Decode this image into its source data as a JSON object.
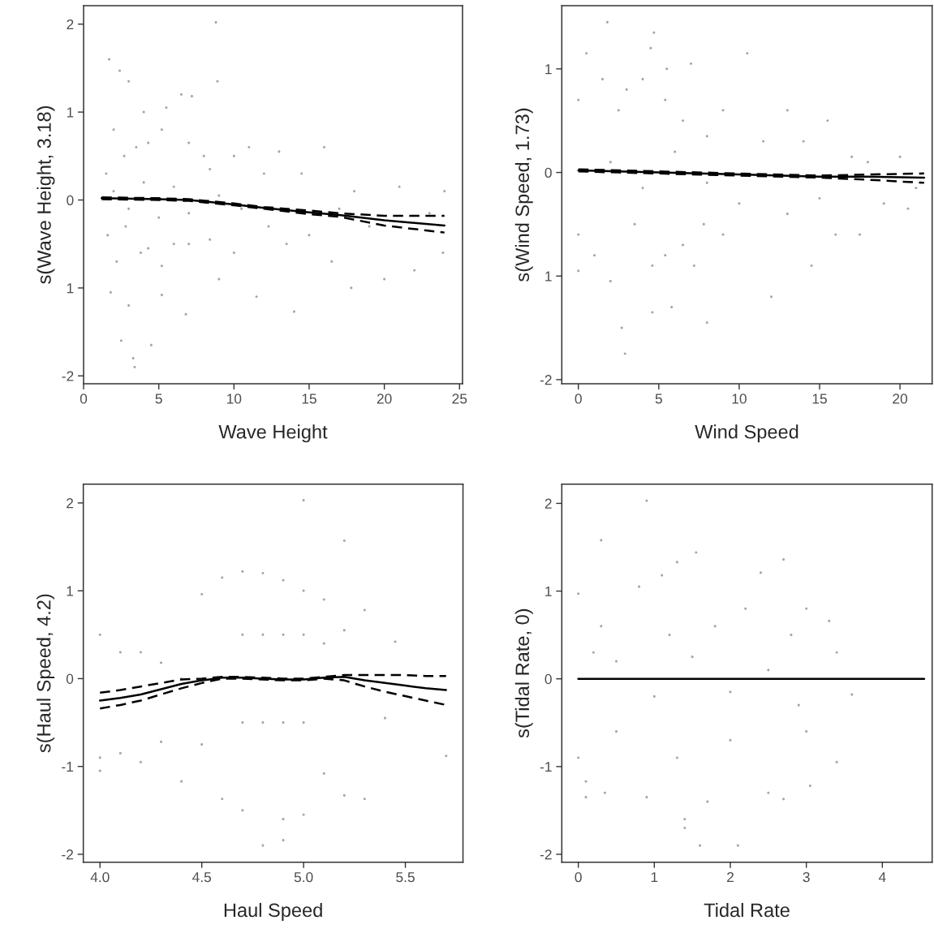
{
  "chart_data": [
    {
      "type": "scatter",
      "xlabel": "Wave Height",
      "ylabel": "s(Wave Height, 3.18)",
      "xlim": [
        0,
        25.2
      ],
      "ylim": [
        -2.09,
        2.21
      ],
      "xticks": [
        0,
        5,
        10,
        15,
        20,
        25
      ],
      "yticks": [
        -2,
        {
          "value": -1,
          "label": "1"
        },
        0,
        1,
        2
      ],
      "grid": false,
      "series": [
        {
          "marker": "circle",
          "color": "#a6a6a6",
          "x": [
            1.5,
            1.6,
            1.7,
            1.8,
            2,
            2.2,
            2.4,
            2.5,
            2.7,
            2.8,
            3,
            3,
            3.3,
            3.4,
            3.5,
            3.8,
            4,
            4.3,
            4.3,
            4.5,
            5.2,
            5.2,
            5.2,
            5.5,
            6,
            6.5,
            6.8,
            7,
            7,
            7.2,
            8,
            8.4,
            8.4,
            8.8,
            8.9,
            9,
            10,
            10,
            11,
            11.5,
            12,
            12.3,
            13,
            13.5,
            14,
            14.5,
            15,
            16,
            16.5,
            17,
            17.8,
            18,
            19,
            20,
            21,
            22,
            23,
            23.9,
            24,
            2,
            3,
            4,
            5,
            6,
            7,
            9,
            10.5
          ],
          "values": [
            0.3,
            -0.4,
            1.6,
            -1.05,
            0.8,
            -0.7,
            1.47,
            -1.6,
            0.5,
            -0.3,
            1.35,
            -1.2,
            -1.8,
            -1.9,
            0.6,
            -0.6,
            1.0,
            0.65,
            -0.55,
            -1.65,
            0.8,
            -0.75,
            -1.08,
            1.05,
            -0.5,
            1.2,
            -1.3,
            0.65,
            -0.5,
            1.18,
            0.5,
            0.35,
            -0.45,
            2.02,
            1.35,
            -0.9,
            0.5,
            -0.6,
            0.6,
            -1.1,
            0.3,
            -0.3,
            0.55,
            -0.5,
            -1.27,
            0.3,
            -0.4,
            0.6,
            -0.7,
            -0.1,
            -1.0,
            0.1,
            -0.3,
            -0.9,
            0.15,
            -0.8,
            -0.15,
            -0.6,
            0.1,
            0.1,
            -0.1,
            0.2,
            -0.2,
            0.15,
            -0.15,
            0.05,
            -0.1
          ]
        },
        {
          "type": "line",
          "line_style": "solid",
          "color": "#000000",
          "x": [
            1.2,
            5,
            7,
            10,
            12,
            15,
            17,
            20,
            24
          ],
          "values": [
            0.02,
            0.01,
            0.0,
            -0.05,
            -0.09,
            -0.14,
            -0.17,
            -0.23,
            -0.29
          ]
        },
        {
          "type": "line",
          "line_style": "dashed",
          "color": "#000000",
          "x": [
            1.2,
            5,
            7,
            10,
            12,
            15,
            17,
            20,
            24
          ],
          "values": [
            0.01,
            0.0,
            -0.01,
            -0.06,
            -0.1,
            -0.16,
            -0.19,
            -0.29,
            -0.37
          ]
        },
        {
          "type": "line",
          "line_style": "dashed",
          "color": "#000000",
          "x": [
            1.2,
            5,
            7,
            10,
            12,
            15,
            17,
            20,
            24
          ],
          "values": [
            0.03,
            0.02,
            0.01,
            -0.04,
            -0.08,
            -0.12,
            -0.15,
            -0.18,
            -0.18
          ]
        }
      ]
    },
    {
      "type": "scatter",
      "xlabel": "Wind Speed",
      "ylabel": "s(Wind Speed, 1.73)",
      "xlim": [
        -1.03,
        22.0
      ],
      "ylim": [
        -2.04,
        1.61
      ],
      "xticks": [
        0,
        5,
        10,
        15,
        20
      ],
      "yticks": [
        -2,
        {
          "value": -1,
          "label": "1"
        },
        0,
        1
      ],
      "grid": false,
      "series": [
        {
          "marker": "circle",
          "color": "#a6a6a6",
          "x": [
            0,
            0,
            0,
            0.5,
            1,
            1.5,
            1.8,
            2,
            2.5,
            2.7,
            2.9,
            3,
            3.5,
            4,
            4.5,
            4.6,
            4.6,
            4.7,
            5.4,
            5.4,
            5.5,
            5.8,
            6.5,
            6.5,
            7,
            7.2,
            7.8,
            8,
            8,
            9,
            9,
            10.5,
            10,
            11.5,
            12,
            13,
            13,
            14,
            14.5,
            15,
            15.5,
            16,
            17,
            17.5,
            18,
            19,
            20,
            20.5,
            21,
            2,
            4,
            6,
            8
          ],
          "values": [
            0.7,
            -0.6,
            -0.95,
            1.15,
            -0.8,
            0.9,
            1.45,
            -1.05,
            0.6,
            -1.5,
            -1.75,
            0.8,
            -0.5,
            0.9,
            1.2,
            -0.9,
            -1.35,
            1.35,
            0.7,
            -0.8,
            1.0,
            -1.3,
            0.5,
            -0.7,
            1.05,
            -0.9,
            -0.5,
            0.35,
            -1.45,
            0.6,
            -0.6,
            1.15,
            -0.3,
            0.3,
            -1.2,
            0.6,
            -0.4,
            0.3,
            -0.9,
            -0.25,
            0.5,
            -0.6,
            0.15,
            -0.6,
            0.1,
            -0.3,
            0.15,
            -0.35,
            -0.15,
            0.1,
            -0.15,
            0.2,
            -0.1
          ]
        },
        {
          "type": "line",
          "line_style": "solid",
          "color": "#000000",
          "x": [
            0,
            5,
            10,
            15,
            18,
            21.5
          ],
          "values": [
            0.02,
            0.0,
            -0.02,
            -0.04,
            -0.04,
            -0.05
          ]
        },
        {
          "type": "line",
          "line_style": "dashed",
          "color": "#000000",
          "x": [
            0,
            5,
            10,
            15,
            18,
            21.5
          ],
          "values": [
            0.01,
            -0.01,
            -0.03,
            -0.05,
            -0.07,
            -0.1
          ]
        },
        {
          "type": "line",
          "line_style": "dashed",
          "color": "#000000",
          "x": [
            0,
            5,
            10,
            15,
            18,
            21.5
          ],
          "values": [
            0.03,
            0.01,
            -0.01,
            -0.03,
            -0.02,
            -0.01
          ]
        }
      ]
    },
    {
      "type": "scatter",
      "xlabel": "Haul Speed",
      "ylabel": "s(Haul Speed, 4.2)",
      "xlim": [
        3.918,
        5.783
      ],
      "ylim": [
        -2.09,
        2.215
      ],
      "xticks": [
        {
          "value": 4,
          "label": "4.0"
        },
        4.5,
        {
          "value": 5,
          "label": "5.0"
        },
        5.5
      ],
      "yticks": [
        -2,
        -1,
        0,
        1,
        2
      ],
      "grid": false,
      "series": [
        {
          "marker": "circle",
          "color": "#a6a6a6",
          "x": [
            4.0,
            4.0,
            4.0,
            4.1,
            4.1,
            4.2,
            4.2,
            4.3,
            4.3,
            4.4,
            4.4,
            4.5,
            4.5,
            4.6,
            4.6,
            4.7,
            4.7,
            4.7,
            4.7,
            4.8,
            4.8,
            4.8,
            4.8,
            4.9,
            4.9,
            4.9,
            4.9,
            4.9,
            5.0,
            5.0,
            5.0,
            5.0,
            5.0,
            5.1,
            5.1,
            5.1,
            5.2,
            5.2,
            5.2,
            5.3,
            5.3,
            5.4,
            5.45,
            5.7
          ],
          "values": [
            0.5,
            -1.05,
            -0.9,
            0.3,
            -0.85,
            0.3,
            -0.95,
            0.18,
            -0.72,
            0.0,
            -1.17,
            0.96,
            -0.75,
            1.15,
            -1.37,
            1.22,
            -1.5,
            0.5,
            -0.5,
            1.2,
            -1.9,
            0.5,
            -0.5,
            1.12,
            -1.84,
            -1.6,
            0.5,
            -0.5,
            2.03,
            1.0,
            -1.55,
            0.5,
            -0.5,
            0.9,
            -1.08,
            0.4,
            1.57,
            0.55,
            -1.33,
            0.78,
            -1.37,
            -0.45,
            0.42,
            -0.88
          ]
        },
        {
          "type": "line",
          "line_style": "solid",
          "color": "#000000",
          "x": [
            4.0,
            4.1,
            4.2,
            4.3,
            4.4,
            4.5,
            4.6,
            4.7,
            4.8,
            4.9,
            5.0,
            5.1,
            5.2,
            5.3,
            5.4,
            5.5,
            5.6,
            5.7
          ],
          "values": [
            -0.25,
            -0.22,
            -0.18,
            -0.12,
            -0.06,
            -0.02,
            0.01,
            0.01,
            0.0,
            -0.01,
            -0.01,
            0.01,
            0.02,
            -0.02,
            -0.05,
            -0.08,
            -0.11,
            -0.13
          ]
        },
        {
          "type": "line",
          "line_style": "dashed",
          "color": "#000000",
          "x": [
            4.0,
            4.1,
            4.2,
            4.3,
            4.4,
            4.5,
            4.6,
            4.7,
            4.8,
            4.9,
            5.0,
            5.1,
            5.2,
            5.3,
            5.4,
            5.5,
            5.6,
            5.7
          ],
          "values": [
            -0.34,
            -0.3,
            -0.25,
            -0.18,
            -0.11,
            -0.05,
            0.0,
            0.0,
            -0.01,
            -0.02,
            -0.02,
            0.0,
            -0.02,
            -0.09,
            -0.15,
            -0.2,
            -0.25,
            -0.3
          ]
        },
        {
          "type": "line",
          "line_style": "dashed",
          "color": "#000000",
          "x": [
            4.0,
            4.1,
            4.2,
            4.3,
            4.4,
            4.5,
            4.6,
            4.7,
            4.8,
            4.9,
            5.0,
            5.1,
            5.2,
            5.3,
            5.4,
            5.5,
            5.6,
            5.7
          ],
          "values": [
            -0.16,
            -0.13,
            -0.09,
            -0.05,
            -0.01,
            0.0,
            0.02,
            0.02,
            0.01,
            0.0,
            0.0,
            0.02,
            0.04,
            0.04,
            0.04,
            0.04,
            0.03,
            0.03
          ]
        }
      ]
    },
    {
      "type": "scatter",
      "xlabel": "Tidal Rate",
      "ylabel": "s(Tidal Rate, 0)",
      "xlim": [
        -0.217,
        4.655
      ],
      "ylim": [
        -2.09,
        2.22
      ],
      "xticks": [
        0,
        1,
        2,
        3,
        4
      ],
      "yticks": [
        -2,
        -1,
        0,
        1,
        2
      ],
      "grid": false,
      "series": [
        {
          "marker": "circle",
          "color": "#a6a6a6",
          "x": [
            0,
            0,
            0.1,
            0.1,
            0.3,
            0.3,
            0.35,
            0.5,
            0.8,
            0.9,
            0.9,
            1.1,
            1.2,
            1.3,
            1.3,
            1.4,
            1.4,
            1.55,
            1.6,
            1.7,
            1.8,
            2.0,
            2.1,
            2.2,
            2.4,
            2.5,
            2.7,
            2.7,
            2.8,
            3.0,
            3.0,
            3.05,
            3.3,
            3.4,
            3.4,
            3.6,
            0.5,
            1,
            1.5,
            2,
            2.5,
            0.2,
            2.9
          ],
          "values": [
            0.97,
            -0.9,
            -1.17,
            -1.35,
            1.58,
            0.6,
            -1.3,
            -0.6,
            1.05,
            2.03,
            -1.35,
            1.18,
            0.5,
            -0.9,
            1.33,
            -1.6,
            -1.7,
            1.44,
            -1.9,
            -1.4,
            0.6,
            -0.7,
            -1.9,
            0.8,
            1.21,
            -1.3,
            1.36,
            -1.37,
            0.5,
            -0.6,
            0.8,
            -1.22,
            0.66,
            0.3,
            -0.95,
            -0.18,
            0.2,
            -0.2,
            0.25,
            -0.15,
            0.1,
            0.3,
            -0.3
          ]
        },
        {
          "type": "line",
          "line_style": "solid",
          "color": "#000000",
          "x": [
            0,
            4.55
          ],
          "values": [
            0,
            0
          ]
        }
      ]
    }
  ]
}
